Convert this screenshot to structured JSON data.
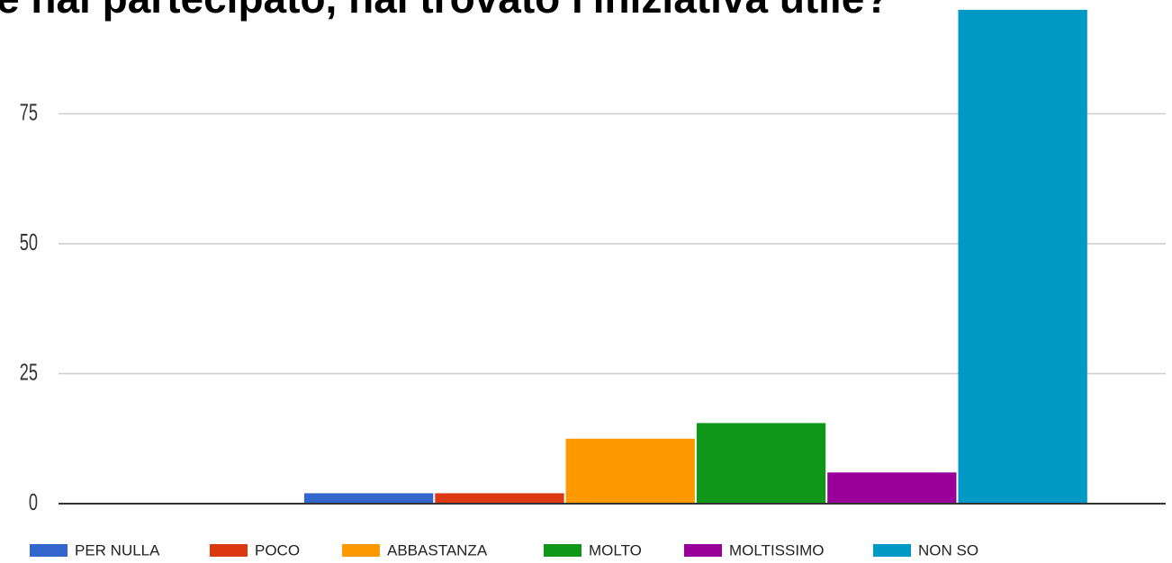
{
  "chart_data": {
    "type": "bar",
    "title": "e hai partecipato, hai trovato l'iniziativa utile?",
    "series": [
      {
        "name": "PER NULLA",
        "color": "#3366cc",
        "values": [
          2
        ]
      },
      {
        "name": "POCO",
        "color": "#dc3912",
        "values": [
          2
        ]
      },
      {
        "name": "ABBASTANZA",
        "color": "#ff9900",
        "values": [
          12.5
        ]
      },
      {
        "name": "MOLTO",
        "color": "#109618",
        "values": [
          15.5
        ]
      },
      {
        "name": "MOLTISSIMO",
        "color": "#990099",
        "values": [
          6
        ]
      },
      {
        "name": "NON SO",
        "color": "#0099c6",
        "values": [
          95
        ]
      }
    ],
    "ylim": [
      0,
      100
    ],
    "yticks": [
      0,
      25,
      50,
      75
    ],
    "grid": true,
    "legend": "bottom"
  }
}
